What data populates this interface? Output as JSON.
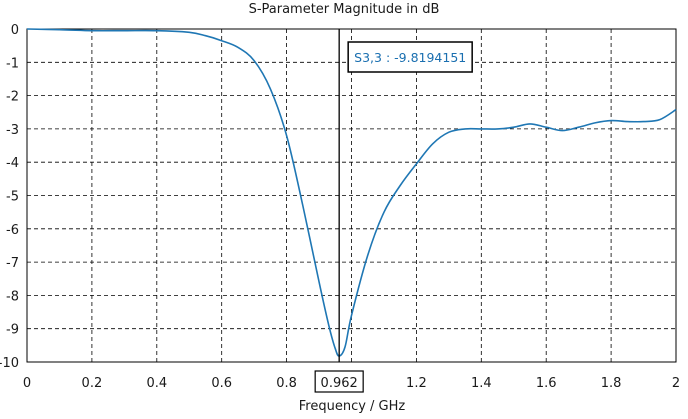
{
  "chart_data": {
    "type": "line",
    "title": "S-Parameter Magnitude in dB",
    "xlabel": "Frequency / GHz",
    "ylabel": "",
    "xlim": [
      0,
      2
    ],
    "ylim": [
      -10,
      0
    ],
    "x_ticks": [
      0,
      0.2,
      0.4,
      0.6,
      0.8,
      1,
      1.2,
      1.4,
      1.6,
      1.8,
      2
    ],
    "x_tick_labels": [
      "0",
      "0.2",
      "0.4",
      "0.6",
      "0.8",
      "1",
      "1.2",
      "1.4",
      "1.6",
      "1.8",
      "2"
    ],
    "y_ticks": [
      0,
      -1,
      -2,
      -3,
      -4,
      -5,
      -6,
      -7,
      -8,
      -9,
      -10
    ],
    "grid": true,
    "grid_style": "dashed",
    "line_color": "#1f77b4",
    "series": [
      {
        "x": [
          0,
          0.1,
          0.2,
          0.3,
          0.4,
          0.5,
          0.55,
          0.6,
          0.65,
          0.7,
          0.75,
          0.8,
          0.85,
          0.9,
          0.93,
          0.95,
          0.962,
          0.98,
          1.0,
          1.05,
          1.1,
          1.15,
          1.2,
          1.25,
          1.3,
          1.35,
          1.4,
          1.45,
          1.5,
          1.55,
          1.6,
          1.65,
          1.7,
          1.75,
          1.8,
          1.85,
          1.9,
          1.95,
          2.0
        ],
        "y": [
          0,
          -0.02,
          -0.05,
          -0.05,
          -0.05,
          -0.1,
          -0.2,
          -0.35,
          -0.55,
          -0.95,
          -1.8,
          -3.2,
          -5.3,
          -7.6,
          -8.9,
          -9.6,
          -9.82,
          -9.55,
          -8.6,
          -6.8,
          -5.5,
          -4.7,
          -4.05,
          -3.45,
          -3.1,
          -3.0,
          -3.0,
          -3.0,
          -2.95,
          -2.85,
          -2.95,
          -3.05,
          -2.95,
          -2.82,
          -2.75,
          -2.78,
          -2.78,
          -2.72,
          -2.42
        ]
      }
    ],
    "marker": {
      "x": 0.962,
      "x_label": "0.962",
      "label": "S3,3 : -9.8194151"
    }
  }
}
